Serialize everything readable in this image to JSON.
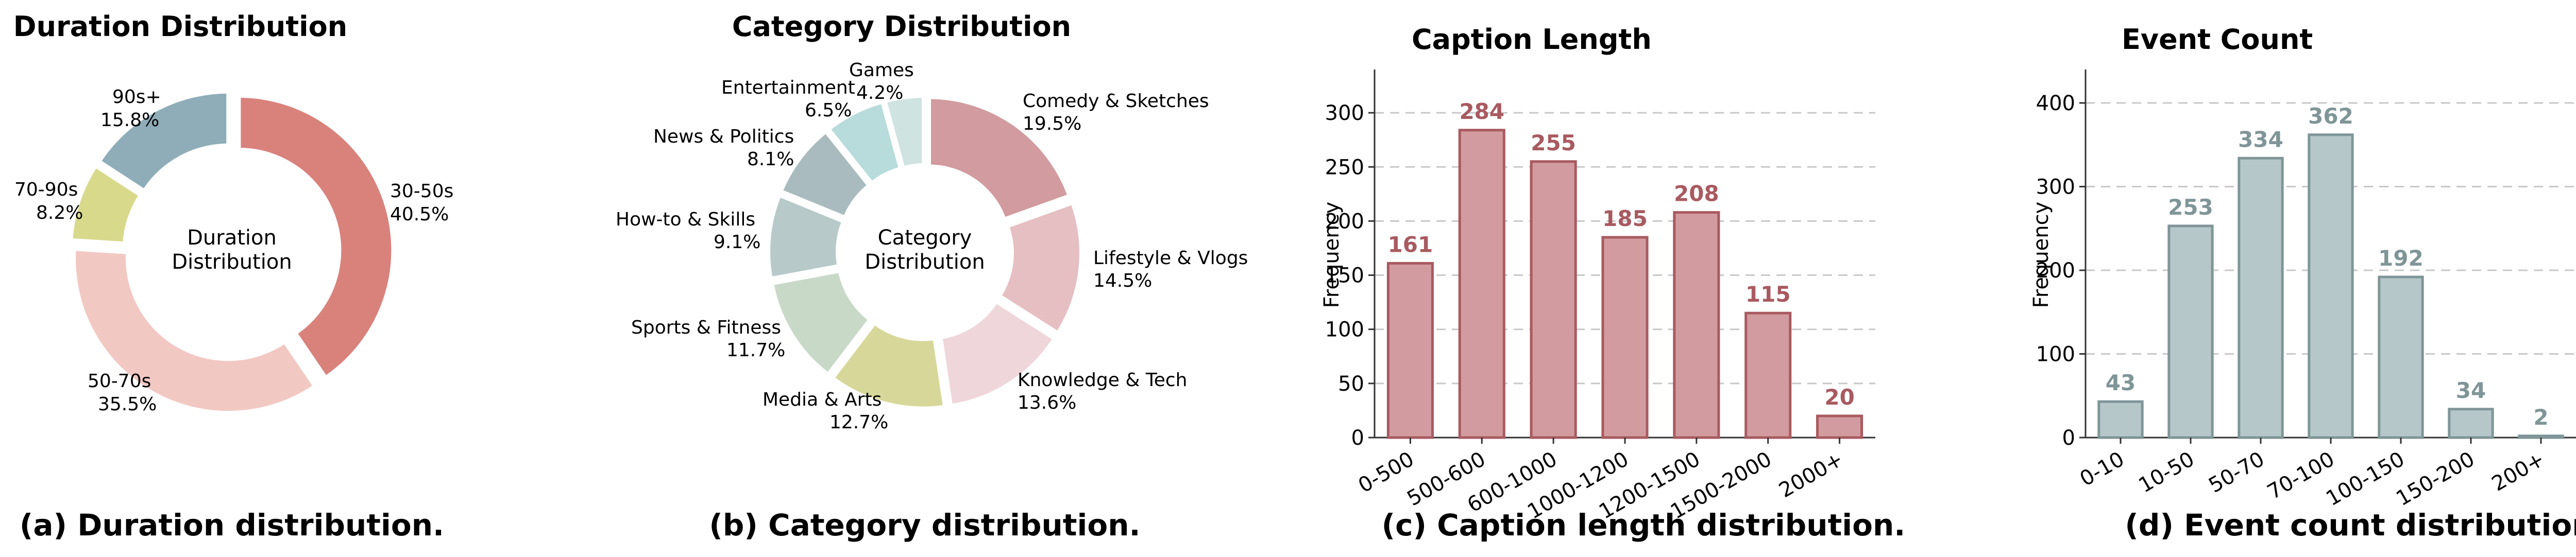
{
  "colors": {
    "duration": [
      "#d9827c",
      "#f2c8c3",
      "#d9d98c",
      "#8eadb8"
    ],
    "category": [
      "#d29b9f",
      "#e6bfc2",
      "#efd6da",
      "#d8d79a",
      "#c9d9c8",
      "#b7c9c9",
      "#a9bbbf",
      "#b8dbdb",
      "#cfe3e1"
    ],
    "caption_bar": "#d29b9f",
    "caption_edge": "#a85a60",
    "caption_label": "#a85a60",
    "event_bar": "#b6c7c9",
    "event_edge": "#7f9598",
    "event_label": "#7f9598"
  },
  "chart_data": [
    {
      "type": "pie",
      "title": "Duration Distribution",
      "center_label": [
        "Duration",
        "Distribution"
      ],
      "caption": "(a) Duration distribution.",
      "slices": [
        {
          "label": "30-50s",
          "pct_label": "40.5%",
          "value": 40.5
        },
        {
          "label": "50-70s",
          "pct_label": "35.5%",
          "value": 35.5
        },
        {
          "label": "70-90s",
          "pct_label": "8.2%",
          "value": 8.2
        },
        {
          "label": "90s+",
          "pct_label": "15.8%",
          "value": 15.8
        }
      ]
    },
    {
      "type": "pie",
      "title": "Category Distribution",
      "center_label": [
        "Category",
        "Distribution"
      ],
      "caption": "(b) Category distribution.",
      "slices": [
        {
          "label": "Comedy & Sketches",
          "pct_label": "19.5%",
          "value": 19.5
        },
        {
          "label": "Lifestyle & Vlogs",
          "pct_label": "14.5%",
          "value": 14.5
        },
        {
          "label": "Knowledge & Tech",
          "pct_label": "13.6%",
          "value": 13.6
        },
        {
          "label": "Media & Arts",
          "pct_label": "12.7%",
          "value": 12.7
        },
        {
          "label": "Sports & Fitness",
          "pct_label": "11.7%",
          "value": 11.7
        },
        {
          "label": "How-to & Skills",
          "pct_label": "9.1%",
          "value": 9.1
        },
        {
          "label": "News & Politics",
          "pct_label": "8.1%",
          "value": 8.1
        },
        {
          "label": "Entertainment",
          "pct_label": "6.5%",
          "value": 6.5
        },
        {
          "label": "Games",
          "pct_label": "4.2%",
          "value": 4.2
        }
      ]
    },
    {
      "type": "bar",
      "title": "Caption Length",
      "caption": "(c) Caption length distribution.",
      "ylabel": "Frequency",
      "xlabel": "",
      "ylim": [
        0,
        340
      ],
      "yticks": [
        0,
        50,
        100,
        150,
        200,
        250,
        300
      ],
      "grid": true,
      "categories": [
        "0-500",
        "500-600",
        "600-1000",
        "1000-1200",
        "1200-1500",
        "1500-2000",
        "2000+"
      ],
      "values": [
        161,
        284,
        255,
        185,
        208,
        115,
        20
      ]
    },
    {
      "type": "bar",
      "title": "Event Count",
      "caption": "(d) Event count distribution.",
      "ylabel": "Frequency",
      "xlabel": "",
      "ylim": [
        0,
        440
      ],
      "yticks": [
        0,
        100,
        200,
        300,
        400
      ],
      "grid": true,
      "categories": [
        "0-10",
        "10-50",
        "50-70",
        "70-100",
        "100-150",
        "150-200",
        "200+"
      ],
      "values": [
        43,
        253,
        334,
        362,
        192,
        34,
        2
      ]
    }
  ]
}
